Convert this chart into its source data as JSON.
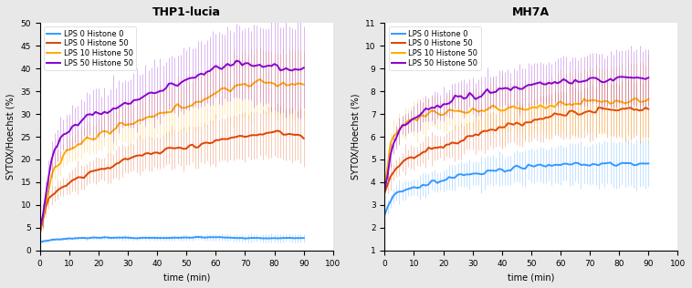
{
  "title_left": "THP1-lucia",
  "title_right": "MH7A",
  "xlabel": "time (min)",
  "ylabel": "SYTOX/Hoechst (%)",
  "legend_labels": [
    "LPS 0 Histone 0",
    "LPS 0 Histone 50",
    "LPS 10 Histone 50",
    "LPS 50 Histone 50"
  ],
  "colors": [
    "#3399ff",
    "#dd4400",
    "#ffaa00",
    "#8800cc"
  ],
  "left_ylim": [
    0,
    50
  ],
  "left_yticks": [
    0,
    5,
    10,
    15,
    20,
    25,
    30,
    35,
    40,
    45,
    50
  ],
  "right_ylim": [
    1,
    11
  ],
  "right_yticks": [
    1,
    2,
    3,
    4,
    5,
    6,
    7,
    8,
    9,
    10,
    11
  ],
  "xlim": [
    0,
    100
  ],
  "xticks": [
    0,
    10,
    20,
    30,
    40,
    50,
    60,
    70,
    80,
    90,
    100
  ],
  "n_points": 91,
  "left_base": {
    "blue": [
      1.8,
      2.0,
      2.1,
      2.2,
      2.3,
      2.3,
      2.4,
      2.4,
      2.5,
      2.5,
      2.6,
      2.6,
      2.7,
      2.7,
      2.7,
      2.7,
      2.7,
      2.8,
      2.8,
      2.8,
      2.8,
      2.8,
      2.8,
      2.8,
      2.8,
      2.8,
      2.8,
      2.8,
      2.8,
      2.8,
      2.8,
      2.8,
      2.8,
      2.8,
      2.8,
      2.8,
      2.8,
      2.8,
      2.8,
      2.8,
      2.8,
      2.8,
      2.8,
      2.8,
      2.8,
      2.8,
      2.8,
      2.8,
      2.8,
      2.8,
      2.8,
      2.8,
      2.8,
      2.9,
      2.9,
      2.9,
      2.9,
      2.9,
      2.9,
      2.9,
      2.9,
      2.9,
      2.9,
      2.8,
      2.8,
      2.8,
      2.8,
      2.8,
      2.8,
      2.8,
      2.7,
      2.7,
      2.7,
      2.7,
      2.7,
      2.7,
      2.7,
      2.7,
      2.7,
      2.7,
      2.7,
      2.7,
      2.7,
      2.7,
      2.7,
      2.7,
      2.7,
      2.7,
      2.7,
      2.7,
      2.7
    ],
    "red": [
      4.0,
      6.5,
      9.0,
      11.0,
      12.0,
      12.8,
      13.4,
      13.8,
      14.2,
      14.5,
      14.8,
      15.2,
      15.5,
      15.8,
      16.1,
      16.4,
      16.7,
      17.0,
      17.2,
      17.5,
      17.8,
      18.0,
      18.2,
      18.5,
      18.7,
      19.0,
      19.2,
      19.4,
      19.6,
      19.8,
      20.0,
      20.2,
      20.4,
      20.6,
      20.8,
      20.9,
      21.0,
      21.2,
      21.3,
      21.5,
      21.6,
      21.8,
      22.0,
      22.1,
      22.2,
      22.3,
      22.5,
      22.6,
      22.7,
      22.8,
      22.9,
      23.0,
      23.1,
      23.2,
      23.3,
      23.5,
      23.6,
      23.7,
      23.8,
      24.0,
      24.1,
      24.2,
      24.4,
      24.5,
      24.6,
      24.7,
      24.8,
      24.9,
      25.0,
      25.1,
      25.2,
      25.3,
      25.4,
      25.5,
      25.6,
      25.7,
      25.8,
      25.9,
      26.0,
      26.0,
      26.0,
      26.0,
      25.9,
      25.8,
      25.7,
      25.6,
      25.5,
      25.4,
      25.3,
      25.2,
      25.1
    ],
    "yellow": [
      4.5,
      7.0,
      10.5,
      14.0,
      16.5,
      18.0,
      19.2,
      20.0,
      20.8,
      21.5,
      22.0,
      22.5,
      23.0,
      23.4,
      23.7,
      24.0,
      24.2,
      24.5,
      24.7,
      25.0,
      25.2,
      25.5,
      25.8,
      26.0,
      26.2,
      26.5,
      26.7,
      27.0,
      27.2,
      27.4,
      27.6,
      27.8,
      28.0,
      28.2,
      28.4,
      28.6,
      28.8,
      29.0,
      29.2,
      29.4,
      29.6,
      29.8,
      30.0,
      30.2,
      30.5,
      30.8,
      31.0,
      31.2,
      31.5,
      31.8,
      32.0,
      32.2,
      32.5,
      32.8,
      33.0,
      33.2,
      33.5,
      33.7,
      34.0,
      34.2,
      34.5,
      34.7,
      35.0,
      35.2,
      35.5,
      35.7,
      36.0,
      36.2,
      36.4,
      36.5,
      36.6,
      36.7,
      36.7,
      36.7,
      36.7,
      36.7,
      36.7,
      36.7,
      36.7,
      36.7,
      36.7,
      36.7,
      36.7,
      36.7,
      36.7,
      36.7,
      36.7,
      36.7,
      36.7,
      36.7,
      36.7
    ],
    "purple": [
      4.5,
      7.5,
      12.0,
      16.5,
      20.0,
      22.0,
      23.5,
      24.5,
      25.2,
      25.8,
      26.2,
      26.8,
      27.2,
      27.6,
      28.0,
      28.4,
      28.8,
      29.2,
      29.5,
      29.8,
      30.0,
      30.3,
      30.6,
      30.8,
      31.0,
      31.3,
      31.5,
      31.8,
      32.0,
      32.2,
      32.5,
      32.8,
      33.0,
      33.2,
      33.5,
      33.7,
      34.0,
      34.2,
      34.5,
      34.8,
      35.0,
      35.2,
      35.5,
      35.8,
      36.0,
      36.2,
      36.5,
      36.7,
      37.0,
      37.2,
      37.5,
      37.7,
      38.0,
      38.2,
      38.5,
      38.8,
      39.0,
      39.2,
      39.5,
      39.8,
      40.0,
      40.2,
      40.5,
      40.7,
      41.0,
      41.2,
      41.3,
      41.4,
      41.4,
      41.3,
      41.2,
      41.1,
      41.0,
      40.9,
      40.8,
      40.7,
      40.6,
      40.5,
      40.4,
      40.3,
      40.2,
      40.1,
      40.0,
      39.9,
      39.8,
      39.7,
      39.6,
      39.5,
      39.5,
      39.5,
      39.5
    ]
  },
  "left_std_base": {
    "blue": 0.7,
    "red": 4.5,
    "yellow": 6.0,
    "purple": 7.5
  },
  "right_base": {
    "blue": [
      2.5,
      2.9,
      3.2,
      3.4,
      3.5,
      3.6,
      3.6,
      3.7,
      3.7,
      3.7,
      3.8,
      3.8,
      3.8,
      3.9,
      3.9,
      3.9,
      4.0,
      4.0,
      4.0,
      4.1,
      4.1,
      4.1,
      4.2,
      4.2,
      4.2,
      4.3,
      4.3,
      4.3,
      4.3,
      4.3,
      4.4,
      4.4,
      4.4,
      4.4,
      4.4,
      4.5,
      4.5,
      4.5,
      4.5,
      4.5,
      4.5,
      4.5,
      4.6,
      4.6,
      4.6,
      4.6,
      4.6,
      4.6,
      4.6,
      4.7,
      4.7,
      4.7,
      4.7,
      4.7,
      4.7,
      4.7,
      4.7,
      4.7,
      4.8,
      4.8,
      4.8,
      4.8,
      4.8,
      4.8,
      4.8,
      4.8,
      4.8,
      4.8,
      4.8,
      4.8,
      4.8,
      4.8,
      4.8,
      4.8,
      4.8,
      4.8,
      4.8,
      4.8,
      4.8,
      4.8,
      4.8,
      4.8,
      4.8,
      4.8,
      4.8,
      4.8,
      4.8,
      4.8,
      4.8,
      4.8,
      4.8
    ],
    "red": [
      3.4,
      3.8,
      4.2,
      4.4,
      4.6,
      4.7,
      4.8,
      4.9,
      5.0,
      5.1,
      5.1,
      5.2,
      5.2,
      5.3,
      5.3,
      5.4,
      5.4,
      5.5,
      5.5,
      5.6,
      5.6,
      5.7,
      5.7,
      5.8,
      5.8,
      5.8,
      5.9,
      5.9,
      6.0,
      6.0,
      6.0,
      6.1,
      6.1,
      6.2,
      6.2,
      6.2,
      6.3,
      6.3,
      6.3,
      6.4,
      6.4,
      6.4,
      6.5,
      6.5,
      6.5,
      6.6,
      6.6,
      6.6,
      6.7,
      6.7,
      6.7,
      6.8,
      6.8,
      6.8,
      6.8,
      6.9,
      6.9,
      6.9,
      7.0,
      7.0,
      7.0,
      7.0,
      7.0,
      7.1,
      7.1,
      7.1,
      7.1,
      7.1,
      7.1,
      7.1,
      7.1,
      7.1,
      7.1,
      7.2,
      7.2,
      7.2,
      7.2,
      7.2,
      7.2,
      7.2,
      7.2,
      7.2,
      7.2,
      7.2,
      7.2,
      7.2,
      7.2,
      7.2,
      7.2,
      7.2,
      7.2
    ],
    "yellow": [
      3.6,
      4.5,
      5.6,
      6.0,
      6.2,
      6.4,
      6.5,
      6.6,
      6.7,
      6.7,
      6.8,
      6.8,
      6.9,
      6.9,
      6.9,
      7.0,
      7.0,
      7.0,
      7.0,
      7.0,
      7.0,
      7.0,
      7.1,
      7.1,
      7.1,
      7.1,
      7.1,
      7.1,
      7.1,
      7.1,
      7.1,
      7.1,
      7.1,
      7.1,
      7.1,
      7.2,
      7.2,
      7.2,
      7.2,
      7.2,
      7.2,
      7.2,
      7.2,
      7.2,
      7.3,
      7.3,
      7.3,
      7.3,
      7.3,
      7.3,
      7.3,
      7.3,
      7.3,
      7.4,
      7.4,
      7.4,
      7.4,
      7.4,
      7.4,
      7.5,
      7.5,
      7.5,
      7.5,
      7.5,
      7.5,
      7.5,
      7.5,
      7.5,
      7.6,
      7.6,
      7.6,
      7.6,
      7.6,
      7.6,
      7.6,
      7.6,
      7.6,
      7.6,
      7.6,
      7.6,
      7.6,
      7.6,
      7.6,
      7.6,
      7.6,
      7.6,
      7.6,
      7.6,
      7.6,
      7.6,
      7.6
    ],
    "purple": [
      3.7,
      4.3,
      5.2,
      5.7,
      6.0,
      6.2,
      6.4,
      6.5,
      6.6,
      6.7,
      6.8,
      6.9,
      7.0,
      7.0,
      7.1,
      7.1,
      7.2,
      7.2,
      7.3,
      7.3,
      7.4,
      7.4,
      7.5,
      7.5,
      7.6,
      7.6,
      7.7,
      7.7,
      7.7,
      7.8,
      7.8,
      7.8,
      7.9,
      7.9,
      7.9,
      8.0,
      8.0,
      8.0,
      8.0,
      8.1,
      8.1,
      8.1,
      8.1,
      8.1,
      8.2,
      8.2,
      8.2,
      8.2,
      8.2,
      8.3,
      8.3,
      8.3,
      8.3,
      8.3,
      8.3,
      8.3,
      8.4,
      8.4,
      8.4,
      8.4,
      8.4,
      8.4,
      8.4,
      8.4,
      8.4,
      8.5,
      8.5,
      8.5,
      8.5,
      8.5,
      8.5,
      8.5,
      8.5,
      8.5,
      8.5,
      8.5,
      8.5,
      8.5,
      8.5,
      8.6,
      8.6,
      8.6,
      8.6,
      8.6,
      8.6,
      8.6,
      8.6,
      8.6,
      8.6,
      8.6,
      8.6
    ]
  },
  "right_std_base": {
    "blue": 0.8,
    "red": 1.0,
    "yellow": 1.3,
    "purple": 1.0
  },
  "outer_bg": "#e8e8e8",
  "panel_bg": "#ffffff",
  "title_fontsize": 9,
  "label_fontsize": 7,
  "tick_fontsize": 6.5,
  "legend_fontsize": 6
}
